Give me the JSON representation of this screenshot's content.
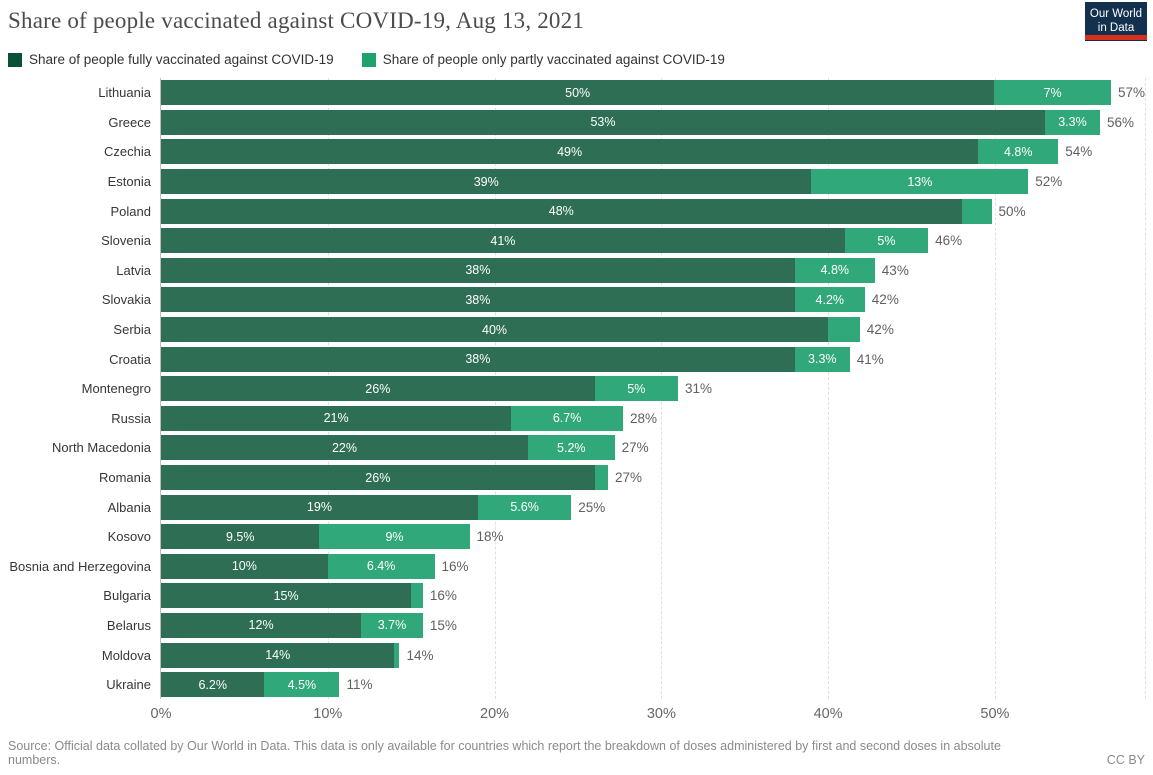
{
  "header": {
    "title": "Share of people vaccinated against COVID-19, Aug 13, 2021",
    "logo": {
      "line1": "Our World",
      "line2": "in Data",
      "bg_color": "#13304e",
      "accent_color": "#d7301f"
    }
  },
  "legend": [
    {
      "label": "Share of people fully vaccinated against COVID-19",
      "swatch_color": "#0b5138"
    },
    {
      "label": "Share of people only partly vaccinated against COVID-19",
      "swatch_color": "#1fa36d"
    }
  ],
  "chart_data": {
    "type": "bar",
    "orientation": "horizontal",
    "stacked": true,
    "title": "Share of people vaccinated against COVID-19, Aug 13, 2021",
    "series_names": [
      "Share of people fully vaccinated against COVID-19",
      "Share of people only partly vaccinated against COVID-19"
    ],
    "colors": {
      "fully_bar": "#2d6e54",
      "partly_bar": "#31a87a"
    },
    "axis_max": 59,
    "grid_values": [
      10,
      20,
      30,
      40,
      50,
      59
    ],
    "x_ticks": [
      "0%",
      "10%",
      "20%",
      "30%",
      "40%",
      "50%"
    ],
    "x_tick_values": [
      0,
      10,
      20,
      30,
      40,
      50
    ],
    "rows": [
      {
        "country": "Lithuania",
        "fully": 50,
        "partly": 7,
        "fully_label": "50%",
        "partly_label": "7%",
        "total_label": "57%"
      },
      {
        "country": "Greece",
        "fully": 53,
        "partly": 3.3,
        "fully_label": "53%",
        "partly_label": "3.3%",
        "total_label": "56%"
      },
      {
        "country": "Czechia",
        "fully": 49,
        "partly": 4.8,
        "fully_label": "49%",
        "partly_label": "4.8%",
        "total_label": "54%"
      },
      {
        "country": "Estonia",
        "fully": 39,
        "partly": 13,
        "fully_label": "39%",
        "partly_label": "13%",
        "total_label": "52%"
      },
      {
        "country": "Poland",
        "fully": 48,
        "partly": 1.8,
        "fully_label": "48%",
        "partly_label": "",
        "total_label": "50%"
      },
      {
        "country": "Slovenia",
        "fully": 41,
        "partly": 5,
        "fully_label": "41%",
        "partly_label": "5%",
        "total_label": "46%"
      },
      {
        "country": "Latvia",
        "fully": 38,
        "partly": 4.8,
        "fully_label": "38%",
        "partly_label": "4.8%",
        "total_label": "43%"
      },
      {
        "country": "Slovakia",
        "fully": 38,
        "partly": 4.2,
        "fully_label": "38%",
        "partly_label": "4.2%",
        "total_label": "42%"
      },
      {
        "country": "Serbia",
        "fully": 40,
        "partly": 1.9,
        "fully_label": "40%",
        "partly_label": "",
        "total_label": "42%"
      },
      {
        "country": "Croatia",
        "fully": 38,
        "partly": 3.3,
        "fully_label": "38%",
        "partly_label": "3.3%",
        "total_label": "41%"
      },
      {
        "country": "Montenegro",
        "fully": 26,
        "partly": 5,
        "fully_label": "26%",
        "partly_label": "5%",
        "total_label": "31%"
      },
      {
        "country": "Russia",
        "fully": 21,
        "partly": 6.7,
        "fully_label": "21%",
        "partly_label": "6.7%",
        "total_label": "28%"
      },
      {
        "country": "North Macedonia",
        "fully": 22,
        "partly": 5.2,
        "fully_label": "22%",
        "partly_label": "5.2%",
        "total_label": "27%"
      },
      {
        "country": "Romania",
        "fully": 26,
        "partly": 0.8,
        "fully_label": "26%",
        "partly_label": "",
        "total_label": "27%"
      },
      {
        "country": "Albania",
        "fully": 19,
        "partly": 5.6,
        "fully_label": "19%",
        "partly_label": "5.6%",
        "total_label": "25%"
      },
      {
        "country": "Kosovo",
        "fully": 9.5,
        "partly": 9,
        "fully_label": "9.5%",
        "partly_label": "9%",
        "total_label": "18%"
      },
      {
        "country": "Bosnia and Herzegovina",
        "fully": 10,
        "partly": 6.4,
        "fully_label": "10%",
        "partly_label": "6.4%",
        "total_label": "16%"
      },
      {
        "country": "Bulgaria",
        "fully": 15,
        "partly": 0.7,
        "fully_label": "15%",
        "partly_label": "",
        "total_label": "16%"
      },
      {
        "country": "Belarus",
        "fully": 12,
        "partly": 3.7,
        "fully_label": "12%",
        "partly_label": "3.7%",
        "total_label": "15%"
      },
      {
        "country": "Moldova",
        "fully": 14,
        "partly": 0.3,
        "fully_label": "14%",
        "partly_label": "",
        "total_label": "14%"
      },
      {
        "country": "Ukraine",
        "fully": 6.2,
        "partly": 4.5,
        "fully_label": "6.2%",
        "partly_label": "4.5%",
        "total_label": "11%"
      }
    ]
  },
  "footer": {
    "source": "Source: Official data collated by Our World in Data. This data is only available for countries which report the breakdown of doses administered by first and second doses in absolute numbers.",
    "license": "CC BY"
  }
}
